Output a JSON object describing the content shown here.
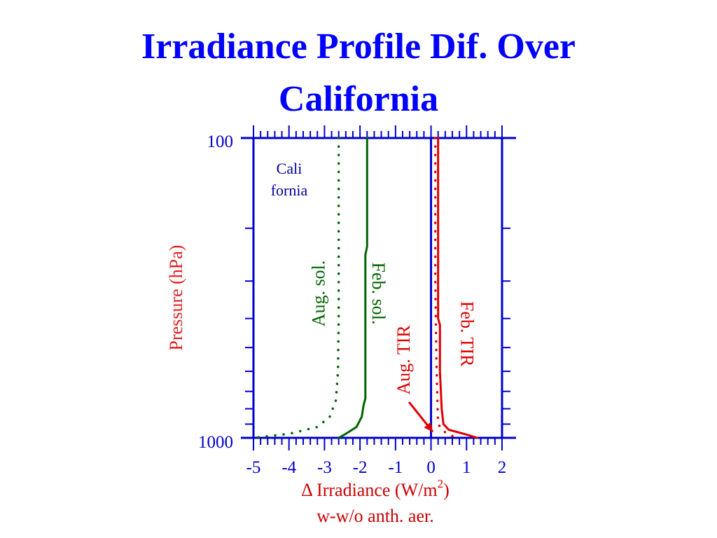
{
  "slide": {
    "title_line1": "Irradiance Profile Dif. Over",
    "title_line2": "California"
  },
  "colors": {
    "title": "#0000ff",
    "axis": "#0000cc",
    "solar": "#006400",
    "tir": "#dd0000",
    "ylabel": "#e02020",
    "xlabel": "#cc0000",
    "region": "#000099"
  },
  "chart_data": {
    "type": "line",
    "title": "Irradiance Profile Dif. Over California",
    "xlabel_line1": "Δ Irradiance (W/m",
    "xlabel_sup": "2",
    "xlabel_close": ")",
    "xlabel_line2": "w-w/o anth. aer.",
    "ylabel": "Pressure (hPa)",
    "xlim": [
      -5,
      2
    ],
    "ylim": [
      1000,
      100
    ],
    "y_scale": "log",
    "x_ticks": [
      -5,
      -4,
      -3,
      -2,
      -1,
      0,
      1,
      2
    ],
    "x_tick_labels": [
      "-5",
      "-4",
      "-3",
      "-2",
      "-1",
      "0",
      "1",
      "2"
    ],
    "y_tick_labels": [
      "100",
      "1000"
    ],
    "region_label_line1": "Cali",
    "region_label_line2": "fornia",
    "series": [
      {
        "name": "Aug. sol.",
        "style": "dotted",
        "color": "#006400",
        "points": [
          [
            -2.6,
            100
          ],
          [
            -2.6,
            200
          ],
          [
            -2.6,
            400
          ],
          [
            -2.62,
            600
          ],
          [
            -2.68,
            750
          ],
          [
            -2.85,
            850
          ],
          [
            -3.2,
            920
          ],
          [
            -4.0,
            970
          ],
          [
            -5.0,
            1000
          ]
        ]
      },
      {
        "name": "Feb. sol.",
        "style": "solid",
        "color": "#006400",
        "points": [
          [
            -1.8,
            100
          ],
          [
            -1.8,
            230
          ],
          [
            -1.85,
            245
          ],
          [
            -1.85,
            500
          ],
          [
            -1.85,
            740
          ],
          [
            -1.9,
            780
          ],
          [
            -1.95,
            850
          ],
          [
            -2.1,
            920
          ],
          [
            -2.4,
            970
          ],
          [
            -2.6,
            1000
          ]
        ]
      },
      {
        "name": "Aug. TIR",
        "style": "dotted",
        "color": "#dd0000",
        "points": [
          [
            0.12,
            100
          ],
          [
            0.12,
            300
          ],
          [
            0.15,
            550
          ],
          [
            0.18,
            750
          ],
          [
            0.2,
            900
          ],
          [
            0.35,
            950
          ],
          [
            0.55,
            980
          ],
          [
            0.7,
            1000
          ]
        ]
      },
      {
        "name": "Feb. TIR",
        "style": "solid",
        "color": "#dd0000",
        "points": [
          [
            0.2,
            100
          ],
          [
            0.2,
            400
          ],
          [
            0.25,
            420
          ],
          [
            0.25,
            600
          ],
          [
            0.3,
            800
          ],
          [
            0.35,
            900
          ],
          [
            0.5,
            940
          ],
          [
            1.0,
            975
          ],
          [
            1.3,
            1000
          ]
        ]
      }
    ],
    "annotations": [
      {
        "text": "Feb. sol.",
        "color": "#006400",
        "rotate": 90,
        "x": -1.65,
        "y": 330
      },
      {
        "text": "Aug. sol.",
        "color": "#006400",
        "rotate": -90,
        "x": -3.0,
        "y": 330
      },
      {
        "text": "Feb. TIR",
        "color": "#dd0000",
        "rotate": 90,
        "x": 0.85,
        "y": 450
      },
      {
        "text": "Aug. TIR",
        "color": "#dd0000",
        "rotate": -90,
        "x": -0.6,
        "y": 550
      }
    ],
    "arrow": {
      "color": "#dd0000",
      "from": [
        -0.62,
        760
      ],
      "to": [
        0.05,
        955
      ]
    }
  }
}
